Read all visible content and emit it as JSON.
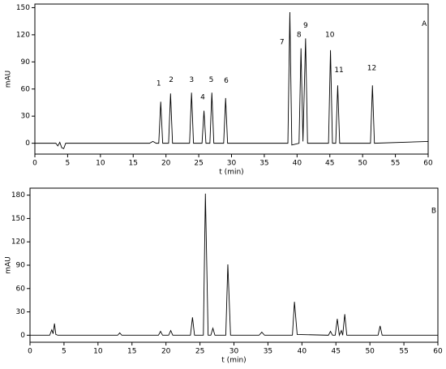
{
  "chart_data": [
    {
      "type": "line",
      "x_label": "t (min)",
      "y_label": "mAU",
      "color": "#000000",
      "x": [
        0,
        3.2,
        3.5,
        3.8,
        4.1,
        4.4,
        4.7,
        17.5,
        18,
        18.5,
        18.9,
        19.2,
        19.5,
        20.4,
        20.7,
        21.0,
        23.6,
        23.9,
        24.2,
        25.5,
        25.8,
        26.1,
        26.7,
        27.0,
        27.3,
        28.8,
        29.1,
        29.4,
        38.6,
        38.9,
        39.2,
        40.3,
        40.6,
        40.9,
        41.3,
        41.6,
        44.8,
        45.1,
        45.4,
        45.9,
        46.2,
        46.5,
        51.2,
        51.5,
        51.8,
        60
      ],
      "values": [
        0,
        0,
        -3,
        1,
        -5,
        -6,
        0,
        0,
        2,
        0,
        0,
        46,
        0,
        0,
        55,
        0,
        0,
        56,
        0,
        0,
        36,
        0,
        0,
        56,
        0,
        0,
        50,
        0,
        0,
        145,
        -2,
        0,
        105,
        2,
        116,
        0,
        0,
        103,
        0,
        0,
        64,
        0,
        0,
        64,
        0,
        2
      ],
      "xlim": [
        0,
        60
      ],
      "xticks": [
        0,
        5,
        10,
        15,
        20,
        25,
        30,
        35,
        40,
        45,
        50,
        55,
        60
      ],
      "ylim": [
        -12,
        154
      ],
      "yticks": [
        0,
        30,
        60,
        90,
        120,
        150
      ],
      "annotations": [
        {
          "text": "1",
          "x": 18.9,
          "y": 66
        },
        {
          "text": "2",
          "x": 20.8,
          "y": 70
        },
        {
          "text": "3",
          "x": 23.9,
          "y": 70
        },
        {
          "text": "4",
          "x": 25.6,
          "y": 51
        },
        {
          "text": "5",
          "x": 26.9,
          "y": 70
        },
        {
          "text": "6",
          "x": 29.2,
          "y": 69
        },
        {
          "text": "7",
          "x": 37.7,
          "y": 112
        },
        {
          "text": "8",
          "x": 40.3,
          "y": 120
        },
        {
          "text": "9",
          "x": 41.3,
          "y": 130
        },
        {
          "text": "10",
          "x": 45.0,
          "y": 120
        },
        {
          "text": "11",
          "x": 46.4,
          "y": 81
        },
        {
          "text": "12",
          "x": 51.4,
          "y": 83
        },
        {
          "text": "A",
          "x": 59.4,
          "y": 132
        }
      ]
    },
    {
      "type": "line",
      "x_label": "t (min)",
      "y_label": "mAU",
      "color": "#000000",
      "x": [
        0,
        2.9,
        3.2,
        3.4,
        3.6,
        3.8,
        4.1,
        12.9,
        13.2,
        13.5,
        18.9,
        19.2,
        19.5,
        20.4,
        20.7,
        21.0,
        23.6,
        23.9,
        24.2,
        25.5,
        25.8,
        26.2,
        26.6,
        26.9,
        27.2,
        28.8,
        29.1,
        29.5,
        33.7,
        34.1,
        34.5,
        38.6,
        38.9,
        39.3,
        43.9,
        44.2,
        44.5,
        44.9,
        45.2,
        45.5,
        45.8,
        46.0,
        46.3,
        46.6,
        51.2,
        51.5,
        51.8,
        60
      ],
      "values": [
        0,
        0,
        7,
        2,
        15,
        1,
        0,
        0,
        3,
        0,
        0,
        5,
        0,
        0,
        6,
        0,
        0,
        23,
        0,
        0,
        182,
        0,
        0,
        9,
        0,
        0,
        91,
        0,
        0,
        4,
        0,
        0,
        43,
        1,
        0,
        5,
        0,
        0,
        21,
        0,
        6,
        0,
        27,
        0,
        0,
        12,
        0,
        0
      ],
      "xlim": [
        0,
        60
      ],
      "xticks": [
        0,
        5,
        10,
        15,
        20,
        25,
        30,
        35,
        40,
        45,
        50,
        55,
        60
      ],
      "ylim": [
        -9,
        189
      ],
      "yticks": [
        0,
        30,
        60,
        90,
        120,
        150,
        180
      ],
      "annotations": [
        {
          "text": "B",
          "x": 59.4,
          "y": 160
        }
      ]
    }
  ]
}
